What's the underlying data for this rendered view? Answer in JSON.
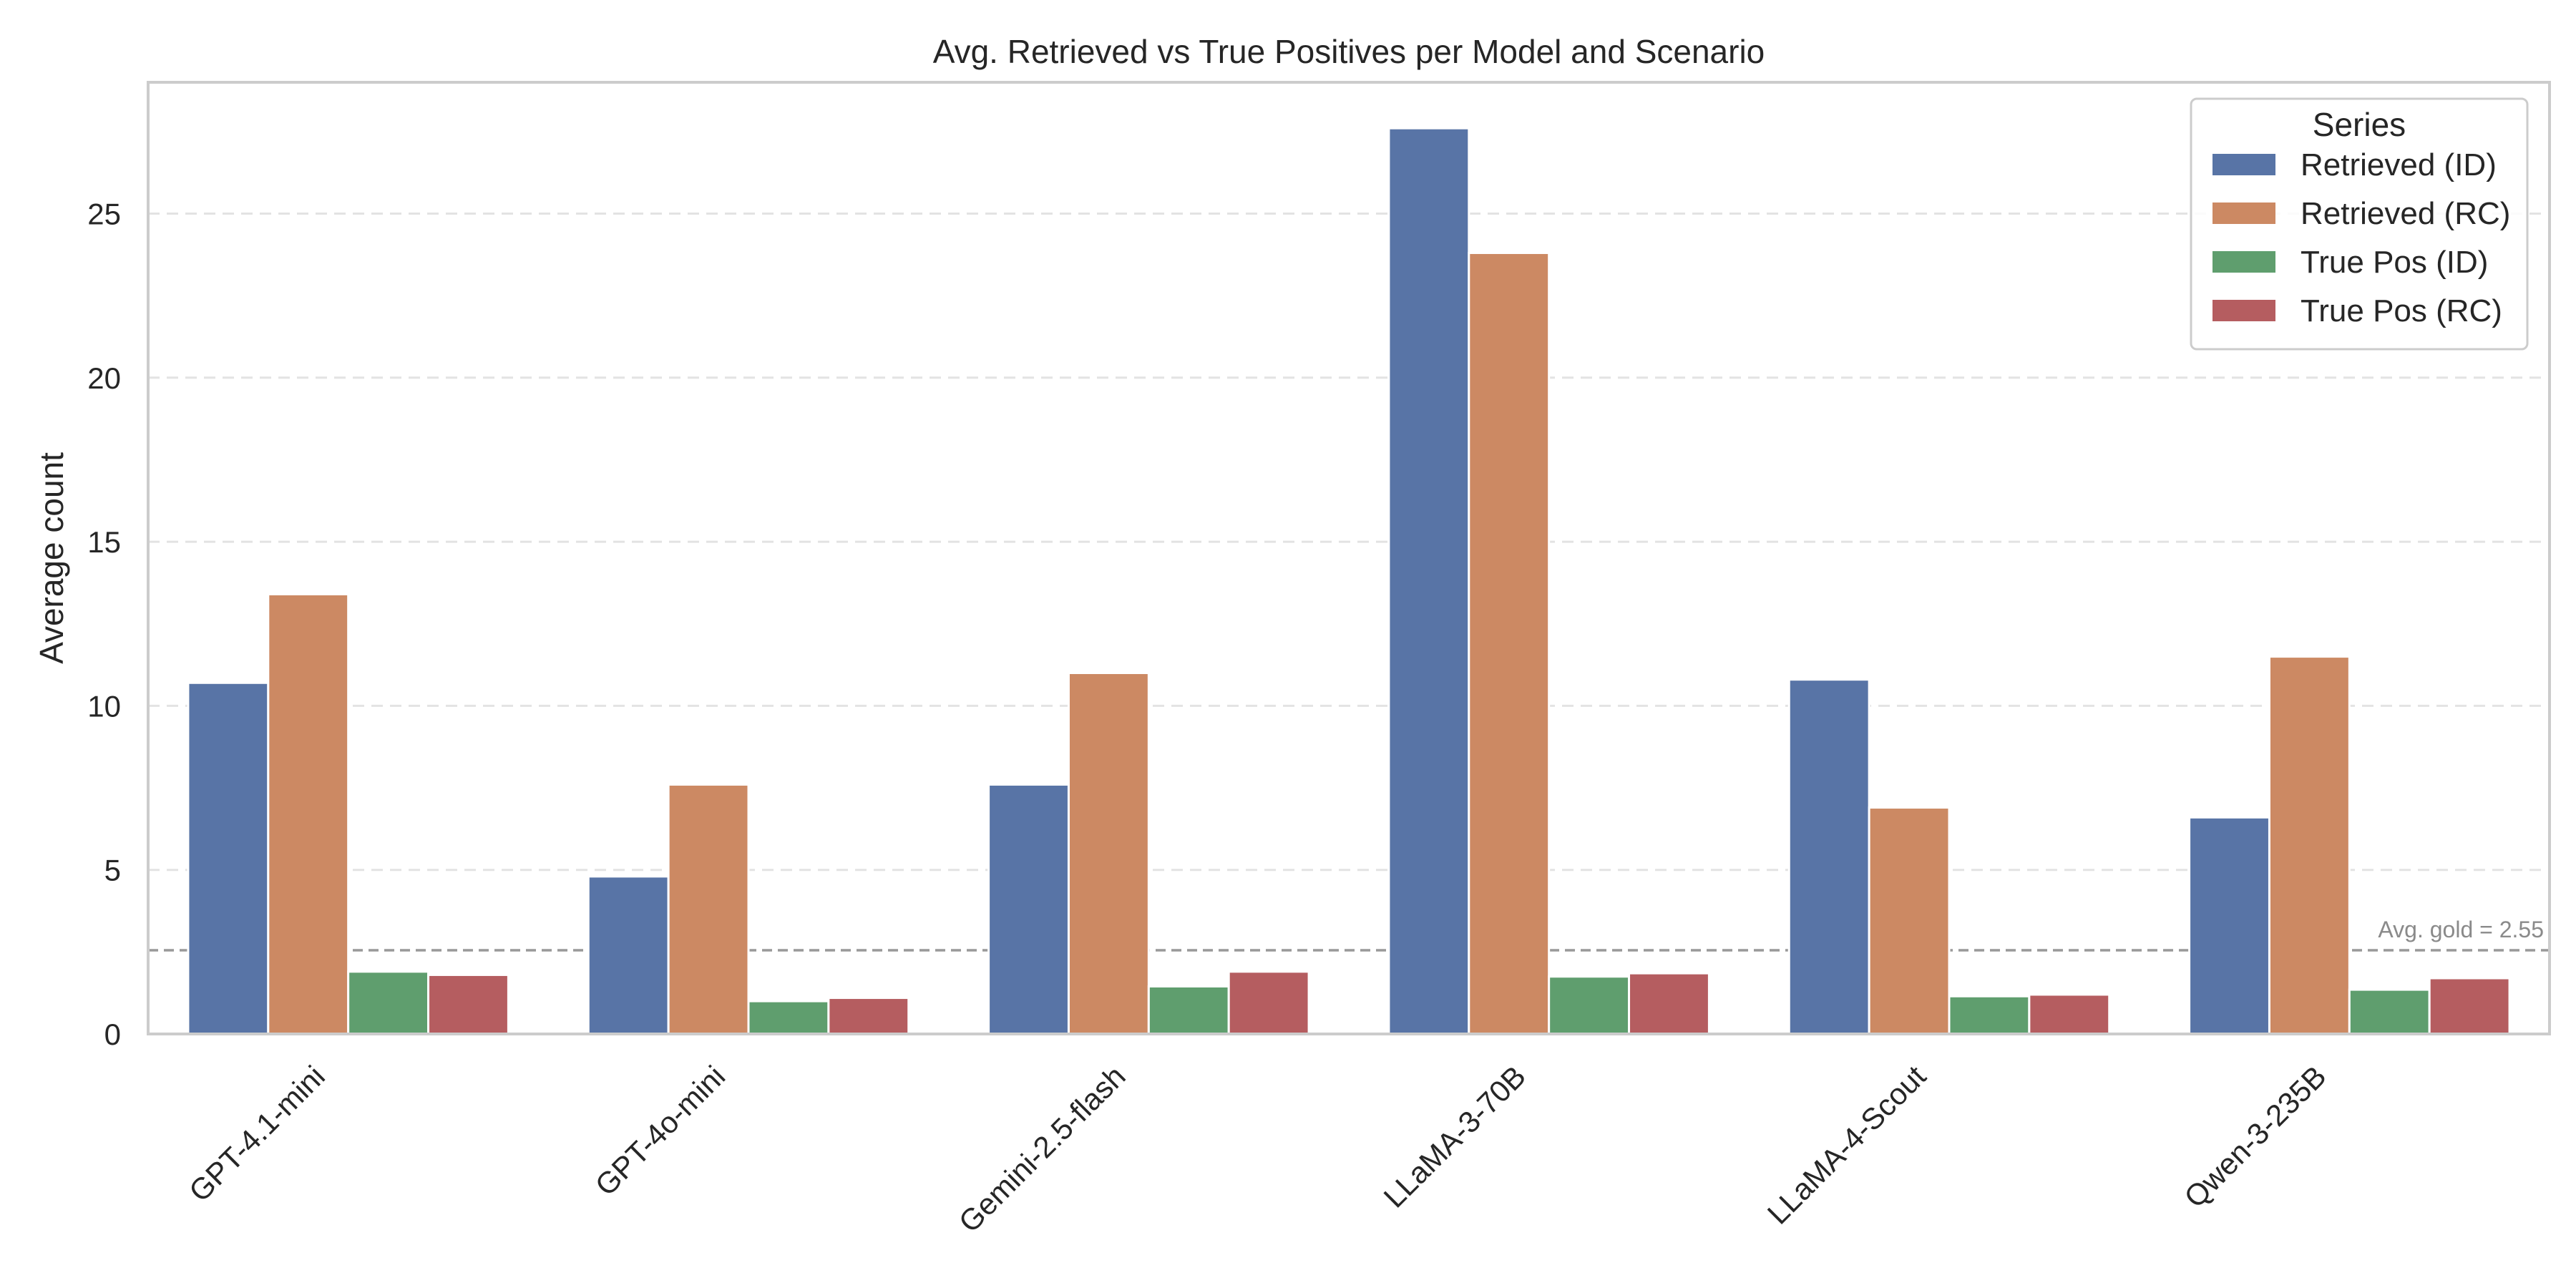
{
  "chart_data": {
    "type": "bar",
    "title": "Avg. Retrieved vs True Positives per Model and Scenario",
    "xlabel": "",
    "ylabel": "Average count",
    "ylim": [
      0,
      29
    ],
    "yticks": [
      0,
      5,
      10,
      15,
      20,
      25
    ],
    "grid": "y",
    "categories": [
      "GPT-4.1-mini",
      "GPT-4o-mini",
      "Gemini-2.5-flash",
      "LLaMA-3-70B",
      "LLaMA-4-Scout",
      "Qwen-3-235B"
    ],
    "series": [
      {
        "name": "Retrieved (ID)",
        "color": "#5874a6",
        "values": [
          10.7,
          4.8,
          7.6,
          27.6,
          10.8,
          6.6
        ]
      },
      {
        "name": "Retrieved (RC)",
        "color": "#cc8963",
        "values": [
          13.4,
          7.6,
          11.0,
          23.8,
          6.9,
          11.5
        ]
      },
      {
        "name": "True Pos (ID)",
        "color": "#5f9e6e",
        "values": [
          1.9,
          1.0,
          1.45,
          1.75,
          1.15,
          1.35
        ]
      },
      {
        "name": "True Pos (RC)",
        "color": "#b55d60",
        "values": [
          1.8,
          1.1,
          1.9,
          1.85,
          1.2,
          1.7
        ]
      }
    ],
    "legend": {
      "title": "Series",
      "position": "top-right"
    },
    "reference_line": {
      "value": 2.55,
      "label": "Avg. gold = 2.55",
      "style": "dashed",
      "color": "#999999"
    }
  }
}
